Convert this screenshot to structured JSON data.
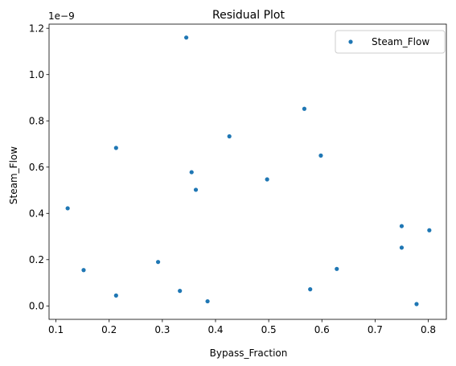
{
  "chart_data": {
    "type": "scatter",
    "title": "Residual Plot",
    "xlabel": "Bypass_Fraction",
    "ylabel": "Steam_Flow",
    "y_offset_label": "1e−9",
    "xlim": [
      0.087,
      0.834
    ],
    "ylim": [
      -0.058,
      1.218
    ],
    "xticks": [
      0.1,
      0.2,
      0.3,
      0.4,
      0.5,
      0.6,
      0.7,
      0.8
    ],
    "xtick_labels": [
      "0.1",
      "0.2",
      "0.3",
      "0.4",
      "0.5",
      "0.6",
      "0.7",
      "0.8"
    ],
    "yticks": [
      0.0,
      0.2,
      0.4,
      0.6,
      0.8,
      1.0,
      1.2
    ],
    "ytick_labels": [
      "0.0",
      "0.2",
      "0.4",
      "0.6",
      "0.8",
      "1.0",
      "1.2"
    ],
    "grid": false,
    "legend_position": "top-right",
    "series": [
      {
        "name": "Steam_Flow",
        "color": "#1f77b4",
        "points": [
          [
            0.122,
            0.422
          ],
          [
            0.152,
            0.155
          ],
          [
            0.213,
            0.683
          ],
          [
            0.213,
            0.045
          ],
          [
            0.292,
            0.19
          ],
          [
            0.333,
            0.065
          ],
          [
            0.345,
            1.16
          ],
          [
            0.355,
            0.578
          ],
          [
            0.363,
            0.502
          ],
          [
            0.385,
            0.02
          ],
          [
            0.426,
            0.733
          ],
          [
            0.497,
            0.547
          ],
          [
            0.567,
            0.852
          ],
          [
            0.578,
            0.072
          ],
          [
            0.598,
            0.65
          ],
          [
            0.628,
            0.16
          ],
          [
            0.75,
            0.345
          ],
          [
            0.75,
            0.252
          ],
          [
            0.778,
            0.008
          ],
          [
            0.802,
            0.327
          ]
        ]
      }
    ]
  }
}
